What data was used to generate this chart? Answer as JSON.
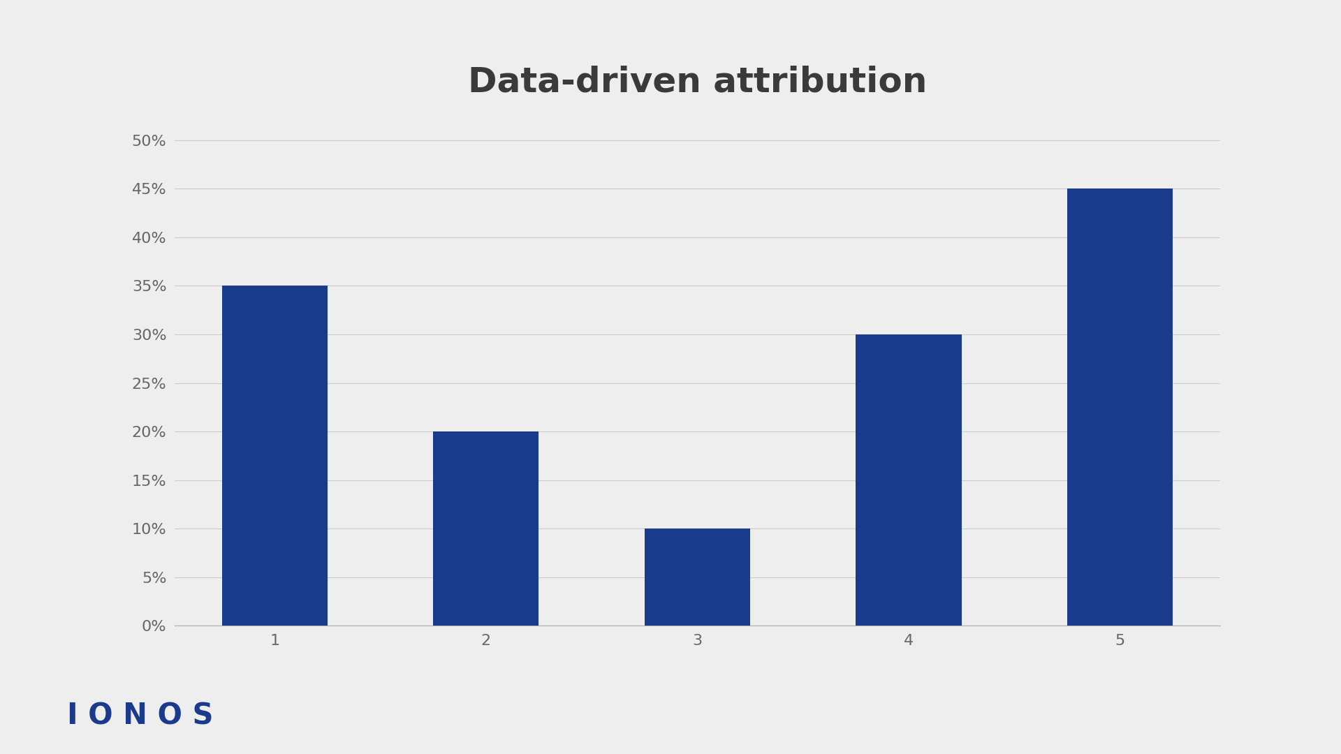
{
  "title": "Data-driven attribution",
  "title_fontsize": 36,
  "title_color": "#3a3a3a",
  "title_fontweight": "bold",
  "categories": [
    1,
    2,
    3,
    4,
    5
  ],
  "values": [
    0.35,
    0.2,
    0.1,
    0.3,
    0.45
  ],
  "bar_color": "#1a3a8c",
  "background_color": "#eeeeee",
  "ylim": [
    0,
    0.52
  ],
  "ytick_step": 0.05,
  "tick_color": "#666666",
  "tick_fontsize": 16,
  "grid_color": "#cccccc",
  "grid_linewidth": 0.8,
  "ionos_text": "I O N O S",
  "ionos_color": "#1a3a8c",
  "ionos_fontsize": 30,
  "bar_width": 0.5,
  "spine_color": "#aaaaaa"
}
